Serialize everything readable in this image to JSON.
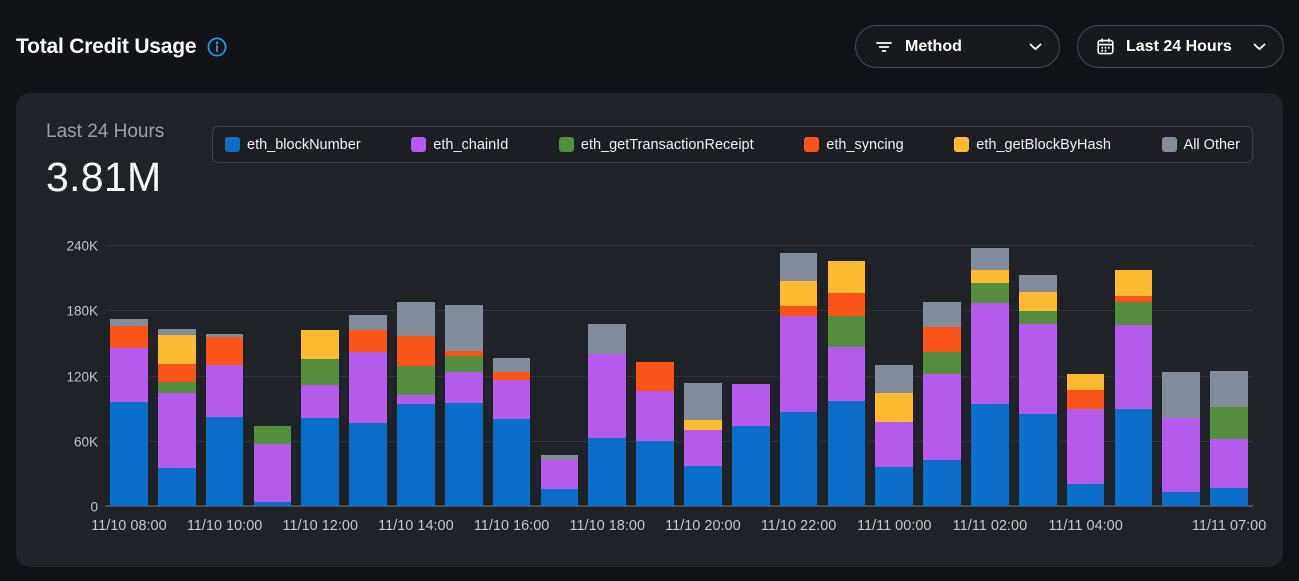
{
  "header": {
    "title": "Total Credit Usage",
    "filters": {
      "method": {
        "label": "Method"
      },
      "range": {
        "label": "Last 24 Hours"
      }
    }
  },
  "panel": {
    "period_label": "Last 24 Hours",
    "total_value": "3.81M"
  },
  "colors": {
    "page_bg": "#121316",
    "panel_bg": "#1f2227",
    "info_icon_blue": "#1d9fe8",
    "series_blue": "#0c6ecb",
    "series_purple": "#b45bee",
    "series_green": "#558e3e",
    "series_orange": "#fa5418",
    "series_yellow": "#fcba30",
    "series_gray": "#828b99"
  },
  "chart_data": {
    "type": "bar",
    "stacked": true,
    "title": "Total Credit Usage - Last 24 Hours",
    "xlabel": "",
    "ylabel": "",
    "ylim": [
      0,
      240000
    ],
    "grid": true,
    "legend_position": "top",
    "yticks": {
      "values": [
        0,
        60000,
        120000,
        180000,
        240000
      ],
      "labels": [
        "0",
        "60K",
        "120K",
        "180K",
        "240K"
      ]
    },
    "categories": [
      "11/10 08:00",
      "11/10 09:00",
      "11/10 10:00",
      "11/10 11:00",
      "11/10 12:00",
      "11/10 13:00",
      "11/10 14:00",
      "11/10 15:00",
      "11/10 16:00",
      "11/10 17:00",
      "11/10 18:00",
      "11/10 19:00",
      "11/10 20:00",
      "11/10 21:00",
      "11/10 22:00",
      "11/10 23:00",
      "11/11 00:00",
      "11/11 01:00",
      "11/11 02:00",
      "11/11 03:00",
      "11/11 04:00",
      "11/11 05:00",
      "11/11 06:00",
      "11/11 07:00"
    ],
    "xtick_indices": [
      0,
      2,
      4,
      6,
      8,
      10,
      12,
      14,
      16,
      18,
      20,
      23
    ],
    "series": [
      {
        "name": "eth_blockNumber",
        "color": "#0c6ecb",
        "values": [
          96000,
          35000,
          82000,
          4000,
          81000,
          76000,
          94000,
          95000,
          80000,
          16000,
          63000,
          60000,
          37000,
          74000,
          86000,
          97000,
          36000,
          42000,
          94000,
          85000,
          20000,
          89000,
          13000,
          17000
        ]
      },
      {
        "name": "eth_chainId",
        "color": "#b45bee",
        "values": [
          49000,
          69000,
          48000,
          53000,
          30000,
          66000,
          8000,
          28000,
          36000,
          26000,
          77000,
          46000,
          33000,
          38000,
          89000,
          49000,
          41000,
          79000,
          93000,
          82000,
          69000,
          77000,
          68000,
          45000
        ]
      },
      {
        "name": "eth_getTransactionReceipt",
        "color": "#558e3e",
        "values": [
          0,
          10000,
          0,
          17000,
          24000,
          0,
          27000,
          15000,
          0,
          0,
          0,
          0,
          0,
          0,
          0,
          29000,
          0,
          21000,
          18000,
          12000,
          0,
          22000,
          0,
          29000
        ]
      },
      {
        "name": "eth_syncing",
        "color": "#fa5418",
        "values": [
          21000,
          17000,
          25000,
          0,
          0,
          20000,
          27000,
          5000,
          7000,
          0,
          0,
          26000,
          0,
          0,
          9000,
          21000,
          0,
          23000,
          0,
          0,
          18000,
          5000,
          0,
          0
        ]
      },
      {
        "name": "eth_getBlockByHash",
        "color": "#fcba30",
        "values": [
          0,
          26000,
          0,
          0,
          27000,
          0,
          0,
          0,
          0,
          0,
          0,
          0,
          9000,
          0,
          23000,
          29000,
          27000,
          0,
          12000,
          18000,
          14000,
          24000,
          0,
          0
        ]
      },
      {
        "name": "All Other",
        "color": "#828b99",
        "values": [
          6000,
          6000,
          3000,
          0,
          0,
          14000,
          32000,
          42000,
          13000,
          5000,
          27000,
          0,
          34000,
          0,
          26000,
          0,
          26000,
          23000,
          20000,
          15000,
          0,
          0,
          42000,
          33000
        ]
      }
    ]
  }
}
